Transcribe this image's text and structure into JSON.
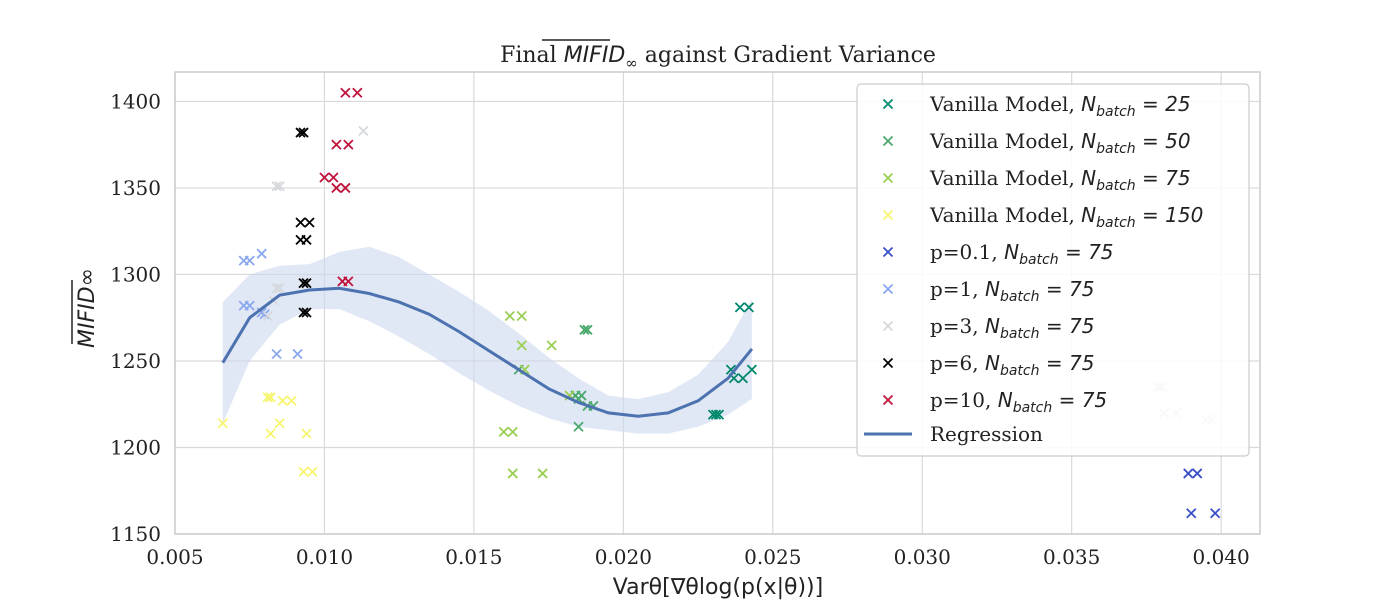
{
  "chart_data": {
    "type": "scatter",
    "title": "Final MIFID∞ against Gradient Variance",
    "title_parts": {
      "prefix": "Final ",
      "metric": "MIFID",
      "subscript": "∞",
      "suffix": " against Gradient Variance"
    },
    "xlabel": "Varθ[∇θlog(p(x|θ))]",
    "ylabel": "MIFID∞",
    "xlim": [
      0.005,
      0.0413
    ],
    "ylim": [
      1150,
      1417
    ],
    "xticks": [
      "0.005",
      "0.010",
      "0.015",
      "0.020",
      "0.025",
      "0.030",
      "0.035",
      "0.040"
    ],
    "xtick_values": [
      0.005,
      0.01,
      0.015,
      0.02,
      0.025,
      0.03,
      0.035,
      0.04
    ],
    "yticks": [
      "1150",
      "1200",
      "1250",
      "1300",
      "1350",
      "1400"
    ],
    "ytick_values": [
      1150,
      1200,
      1250,
      1300,
      1350,
      1400
    ],
    "grid": true,
    "legend_position": "top-right",
    "series": [
      {
        "name": "Vanilla Model, N_batch = 25",
        "label_prefix": "Vanilla Model, ",
        "label_n": "25",
        "color": "#00876c",
        "points": [
          [
            0.023,
            1219
          ],
          [
            0.0231,
            1219
          ],
          [
            0.0232,
            1219
          ],
          [
            0.0236,
            1245
          ],
          [
            0.0237,
            1240
          ],
          [
            0.0239,
            1281
          ],
          [
            0.024,
            1240
          ],
          [
            0.0242,
            1281
          ],
          [
            0.0243,
            1245
          ]
        ]
      },
      {
        "name": "Vanilla Model, N_batch = 50",
        "label_prefix": "Vanilla Model, ",
        "label_n": "50",
        "color": "#4aa96c",
        "points": [
          [
            0.0165,
            1245
          ],
          [
            0.0184,
            1230
          ],
          [
            0.0185,
            1212
          ],
          [
            0.0185,
            1228
          ],
          [
            0.0186,
            1230
          ],
          [
            0.0187,
            1268
          ],
          [
            0.0188,
            1268
          ],
          [
            0.0188,
            1224
          ],
          [
            0.019,
            1224
          ]
        ]
      },
      {
        "name": "Vanilla Model, N_batch = 75",
        "label_prefix": "Vanilla Model, ",
        "label_n": "75",
        "color": "#9bcf53",
        "points": [
          [
            0.016,
            1209
          ],
          [
            0.0162,
            1276
          ],
          [
            0.0163,
            1185
          ],
          [
            0.0163,
            1209
          ],
          [
            0.0166,
            1259
          ],
          [
            0.0166,
            1276
          ],
          [
            0.0167,
            1245
          ],
          [
            0.0173,
            1185
          ],
          [
            0.0176,
            1259
          ],
          [
            0.0182,
            1230
          ]
        ]
      },
      {
        "name": "Vanilla Model, N_batch = 150",
        "label_prefix": "Vanilla Model, ",
        "label_n": "150",
        "color": "#f7f570",
        "points": [
          [
            0.0066,
            1214
          ],
          [
            0.0081,
            1229
          ],
          [
            0.0082,
            1208
          ],
          [
            0.0082,
            1229
          ],
          [
            0.0085,
            1214
          ],
          [
            0.0086,
            1227
          ],
          [
            0.0089,
            1227
          ],
          [
            0.0093,
            1186
          ],
          [
            0.0094,
            1208
          ],
          [
            0.0096,
            1186
          ]
        ]
      },
      {
        "name": "p=0.1, N_batch = 75",
        "label_prefix": "p=0.1, ",
        "label_n": "75",
        "color": "#3a4fc7",
        "points": [
          [
            0.0389,
            1185
          ],
          [
            0.039,
            1162
          ],
          [
            0.0392,
            1185
          ],
          [
            0.0398,
            1162
          ]
        ]
      },
      {
        "name": "p=1, N_batch = 75",
        "label_prefix": "p=1, ",
        "label_n": "75",
        "color": "#8aa8f0",
        "points": [
          [
            0.0073,
            1282
          ],
          [
            0.0073,
            1308
          ],
          [
            0.0075,
            1308
          ],
          [
            0.0075,
            1282
          ],
          [
            0.0079,
            1312
          ],
          [
            0.0079,
            1278
          ],
          [
            0.008,
            1277
          ],
          [
            0.0084,
            1254
          ],
          [
            0.0091,
            1254
          ]
        ]
      },
      {
        "name": "p=3, N_batch = 75",
        "label_prefix": "p=3, ",
        "label_n": "75",
        "color": "#d5d8dc",
        "points": [
          [
            0.0081,
            1276
          ],
          [
            0.0083,
            1285
          ],
          [
            0.0084,
            1351
          ],
          [
            0.0084,
            1292
          ],
          [
            0.0085,
            1351
          ],
          [
            0.0085,
            1292
          ],
          [
            0.0113,
            1383
          ],
          [
            0.0379,
            1235
          ],
          [
            0.038,
            1235
          ],
          [
            0.0381,
            1220
          ],
          [
            0.0385,
            1220
          ],
          [
            0.0395,
            1216
          ],
          [
            0.0397,
            1216
          ]
        ]
      },
      {
        "name": "p=6, N_batch = 75",
        "label_prefix": "p=6, ",
        "label_n": "75",
        "color": "#000000",
        "points": [
          [
            0.0092,
            1382
          ],
          [
            0.0093,
            1382
          ],
          [
            0.0092,
            1330
          ],
          [
            0.0095,
            1330
          ],
          [
            0.0092,
            1320
          ],
          [
            0.0094,
            1320
          ],
          [
            0.0093,
            1295
          ],
          [
            0.0094,
            1295
          ],
          [
            0.0093,
            1278
          ],
          [
            0.0094,
            1278
          ]
        ]
      },
      {
        "name": "p=10, N_batch = 75",
        "label_prefix": "p=10, ",
        "label_n": "75",
        "color": "#c0143c",
        "points": [
          [
            0.0107,
            1405
          ],
          [
            0.0111,
            1405
          ],
          [
            0.0104,
            1375
          ],
          [
            0.0108,
            1375
          ],
          [
            0.01,
            1356
          ],
          [
            0.0103,
            1356
          ],
          [
            0.0104,
            1350
          ],
          [
            0.0107,
            1350
          ],
          [
            0.0106,
            1296
          ],
          [
            0.0108,
            1296
          ]
        ]
      }
    ],
    "regression": {
      "name": "Regression",
      "color": "#4c72b0",
      "band_color": "#cdd8ee",
      "x": [
        0.0066,
        0.0075,
        0.0085,
        0.0095,
        0.0105,
        0.0115,
        0.0125,
        0.0135,
        0.0145,
        0.0155,
        0.0165,
        0.0175,
        0.0185,
        0.0195,
        0.0205,
        0.0215,
        0.0225,
        0.0235,
        0.0243
      ],
      "y": [
        1249,
        1275,
        1288,
        1291,
        1292,
        1289,
        1284,
        1277,
        1267,
        1256,
        1245,
        1234,
        1226,
        1220,
        1218,
        1220,
        1227,
        1240,
        1257
      ],
      "lower": [
        1214,
        1250,
        1271,
        1280,
        1280,
        1273,
        1264,
        1254,
        1243,
        1233,
        1224,
        1217,
        1212,
        1210,
        1208,
        1208,
        1212,
        1219,
        1228
      ],
      "upper": [
        1284,
        1300,
        1305,
        1306,
        1313,
        1316,
        1310,
        1300,
        1290,
        1279,
        1266,
        1252,
        1240,
        1230,
        1228,
        1232,
        1242,
        1261,
        1286
      ]
    }
  }
}
